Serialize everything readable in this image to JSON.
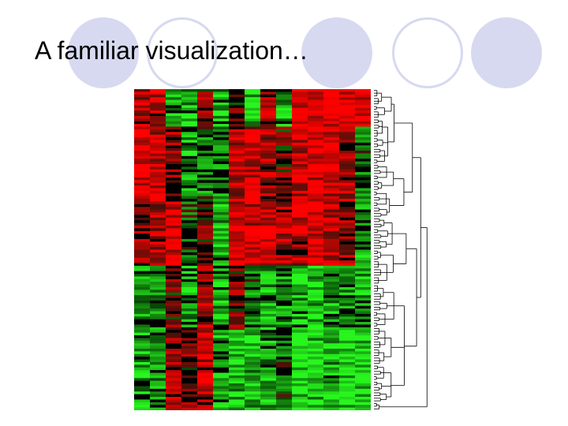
{
  "slide": {
    "title": "A familiar visualization…"
  },
  "figure": {
    "type": "clustered-heatmap-with-dendrogram",
    "colors": {
      "high": "#ff1a1a",
      "low": "#33ee22",
      "neutral": "#000000",
      "dendrogram_line": "#000000",
      "accent_circle": "#d7d9f0"
    },
    "columns": 15,
    "rows": 120
  }
}
